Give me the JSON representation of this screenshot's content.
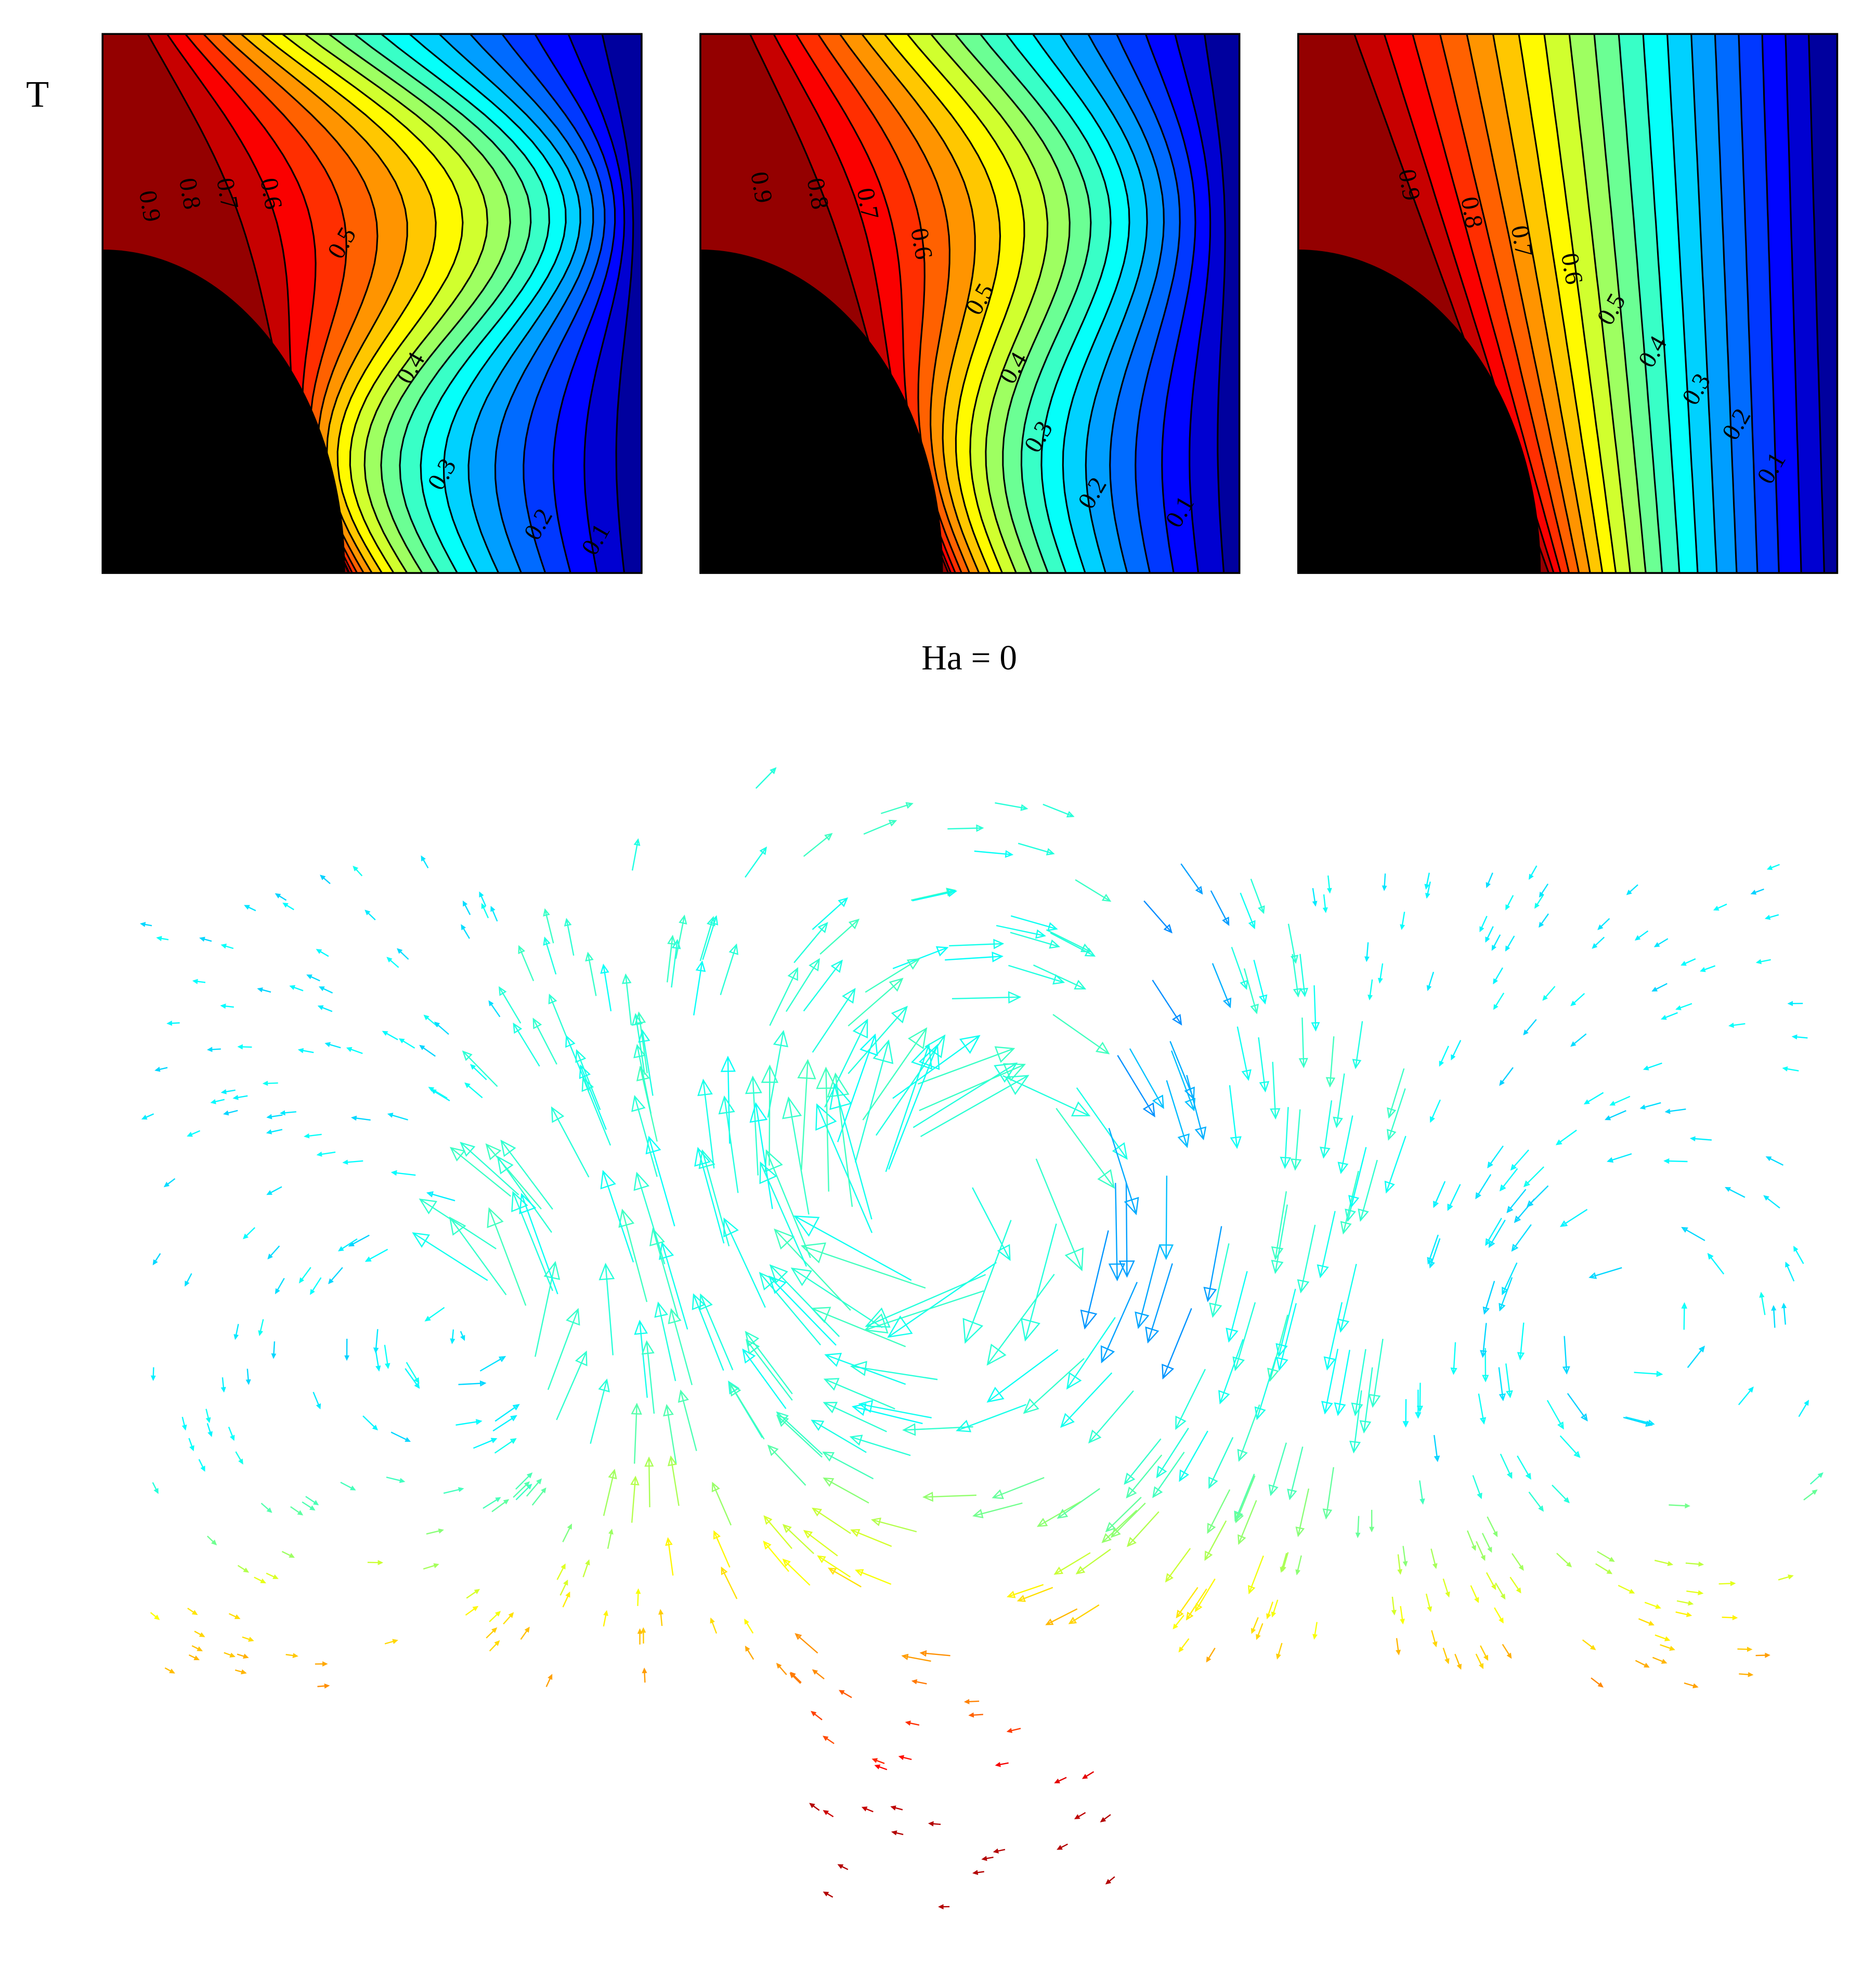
{
  "row_label": "T",
  "panels": [
    {
      "contour_labels": [
        "0.9",
        "0.8",
        "0.7",
        "0.6",
        "0.5",
        "0.4",
        "0.3",
        "0.2",
        "0.1"
      ]
    },
    {
      "contour_labels": [
        "0.9",
        "0.8",
        "0.7",
        "0.6",
        "0.5",
        "0.4",
        "0.3",
        "0.2",
        "0.1"
      ]
    },
    {
      "contour_labels": [
        "0.9",
        "0.8",
        "0.7",
        "0.6",
        "0.5",
        "0.4",
        "0.3",
        "0.2",
        "0.1"
      ]
    }
  ],
  "caption": "Ha = 0"
}
